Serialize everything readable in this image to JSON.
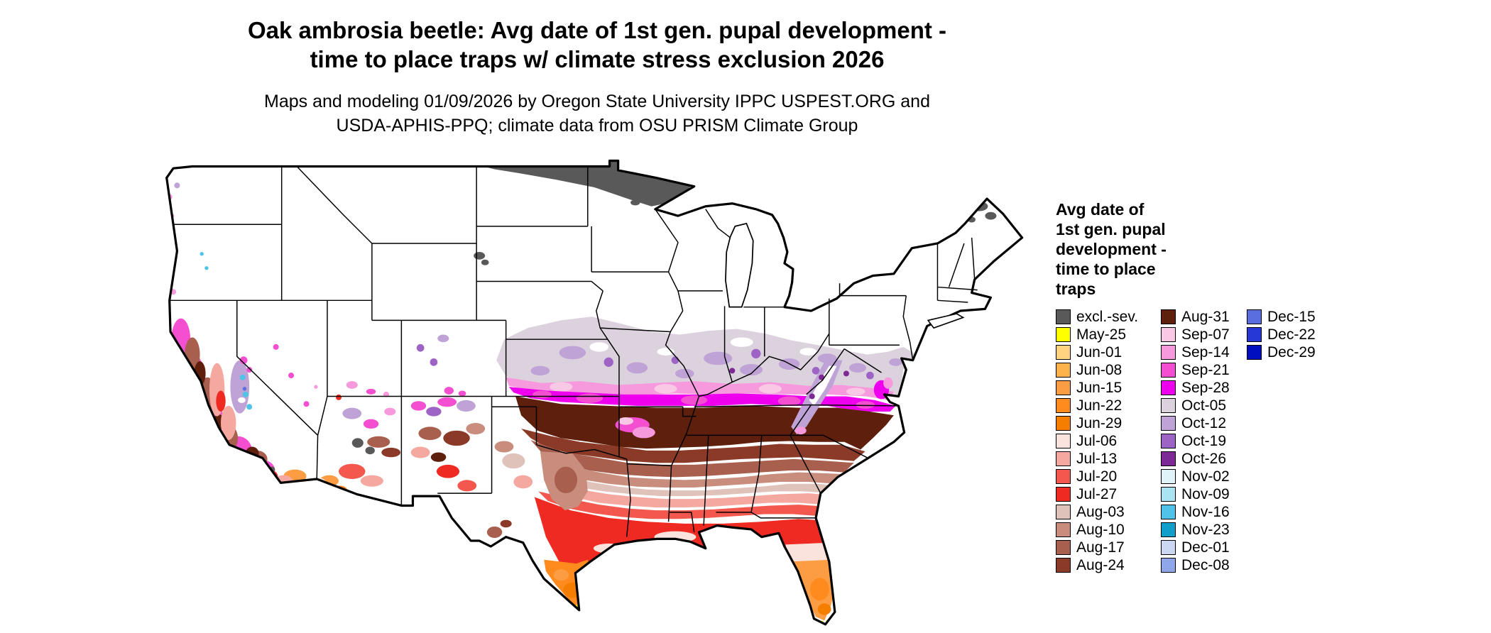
{
  "title": {
    "line1": "Oak ambrosia beetle: Avg date of 1st gen. pupal development -",
    "line2": "time to place traps w/ climate stress exclusion 2026"
  },
  "subtitle": {
    "line1": "Maps and modeling 01/09/2026 by Oregon State University IPPC USPEST.ORG and",
    "line2": "USDA-APHIS-PPQ; climate data from OSU PRISM Climate Group"
  },
  "legend": {
    "title_lines": [
      "Avg date of",
      "1st gen. pupal",
      "development -",
      "time to place",
      "traps"
    ],
    "columns": [
      {
        "entries": [
          {
            "label": "excl.-sev.",
            "color": "#595959"
          },
          {
            "label": "May-25",
            "color": "#ffff00"
          },
          {
            "label": "Jun-01",
            "color": "#ffd37f"
          },
          {
            "label": "Jun-08",
            "color": "#feb24c"
          },
          {
            "label": "Jun-15",
            "color": "#fd9d43"
          },
          {
            "label": "Jun-22",
            "color": "#ff8a1e"
          },
          {
            "label": "Jun-29",
            "color": "#f57d00"
          },
          {
            "label": "Jul-06",
            "color": "#fbe3dd"
          },
          {
            "label": "Jul-13",
            "color": "#f5a8a0"
          },
          {
            "label": "Jul-20",
            "color": "#f4574d"
          },
          {
            "label": "Jul-27",
            "color": "#ee2a22"
          },
          {
            "label": "Aug-03",
            "color": "#dfc2b9"
          },
          {
            "label": "Aug-10",
            "color": "#c98d7d"
          },
          {
            "label": "Aug-17",
            "color": "#a85f4e"
          },
          {
            "label": "Aug-24",
            "color": "#8c3a28"
          }
        ]
      },
      {
        "entries": [
          {
            "label": "Aug-31",
            "color": "#5e1f0c"
          },
          {
            "label": "Sep-07",
            "color": "#f9c8e4"
          },
          {
            "label": "Sep-14",
            "color": "#f799dd"
          },
          {
            "label": "Sep-21",
            "color": "#f44fd0"
          },
          {
            "label": "Sep-28",
            "color": "#ee00ee"
          },
          {
            "label": "Oct-05",
            "color": "#dcd2de"
          },
          {
            "label": "Oct-12",
            "color": "#bfa3d6"
          },
          {
            "label": "Oct-19",
            "color": "#9d64c6"
          },
          {
            "label": "Oct-26",
            "color": "#7d2a96"
          },
          {
            "label": "Nov-02",
            "color": "#dff3f8"
          },
          {
            "label": "Nov-09",
            "color": "#aae4f2"
          },
          {
            "label": "Nov-16",
            "color": "#4fc3e8"
          },
          {
            "label": "Nov-23",
            "color": "#119fc9"
          },
          {
            "label": "Dec-01",
            "color": "#ccd7f2"
          },
          {
            "label": "Dec-08",
            "color": "#8fa7ea"
          }
        ]
      },
      {
        "entries": [
          {
            "label": "Dec-15",
            "color": "#5b6ee0"
          },
          {
            "label": "Dec-22",
            "color": "#2638d6"
          },
          {
            "label": "Dec-29",
            "color": "#0010c0"
          }
        ]
      }
    ]
  }
}
